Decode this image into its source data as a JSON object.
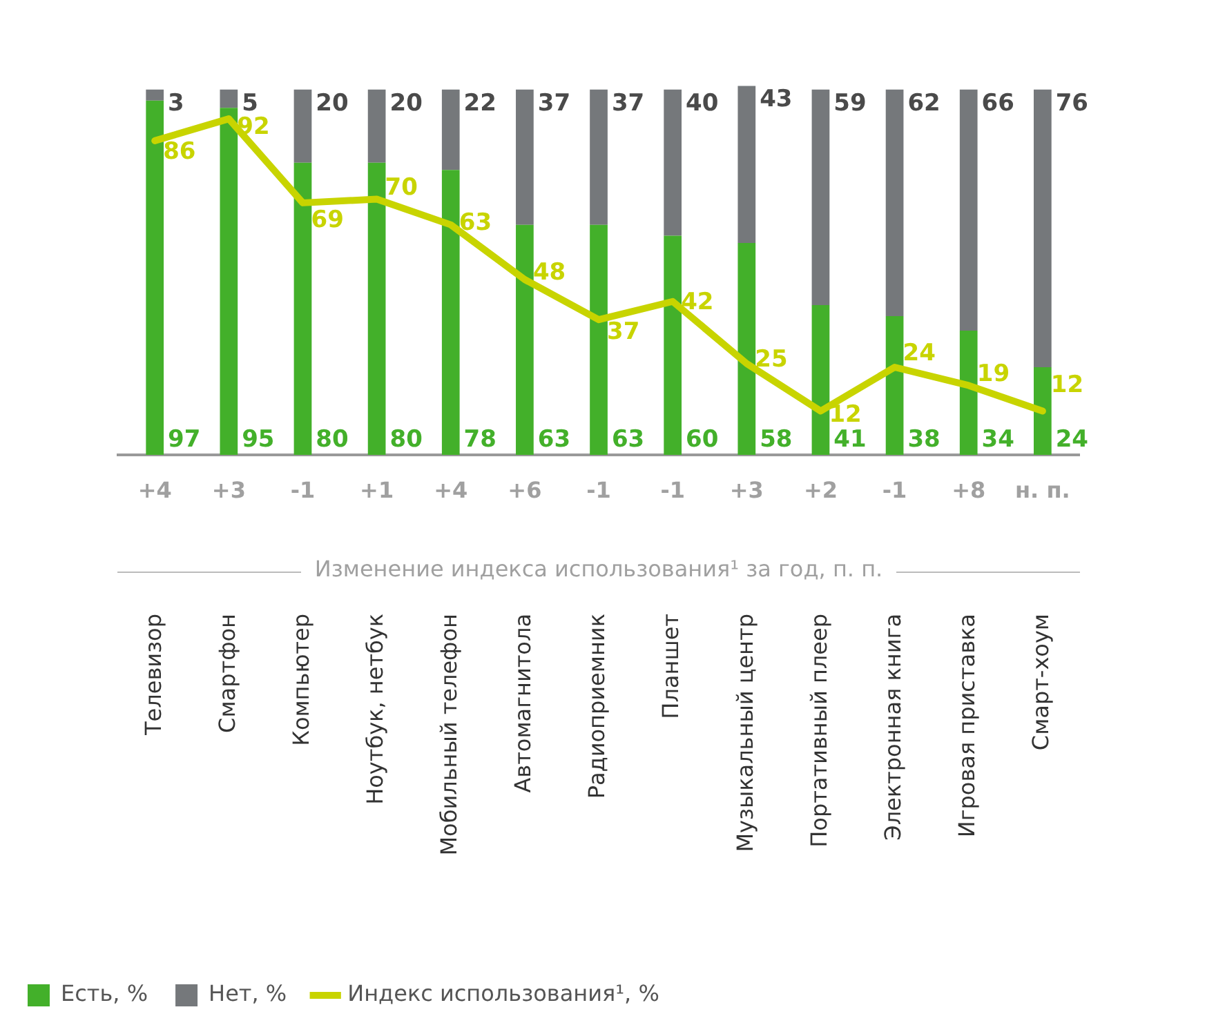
{
  "chart_data": {
    "type": "bar",
    "stacked": true,
    "categories": [
      "Телевизор",
      "Смартфон",
      "Компьютер",
      "Ноутбук, нетбук",
      "Мобильный телефон",
      "Автомагнитола",
      "Радиоприемник",
      "Планшет",
      "Музыкальный центр",
      "Портативный плеер",
      "Электронная книга",
      "Игровая приставка",
      "Смарт-хоум"
    ],
    "series": [
      {
        "name": "Есть, %",
        "color": "#43b02a",
        "values": [
          97,
          95,
          80,
          80,
          78,
          63,
          63,
          60,
          58,
          41,
          38,
          34,
          24
        ]
      },
      {
        "name": "Нет, %",
        "color": "#75787b",
        "values": [
          3,
          5,
          20,
          20,
          22,
          37,
          37,
          40,
          43,
          59,
          62,
          66,
          76
        ]
      },
      {
        "name": "Индекс использования¹, %",
        "type": "line",
        "color": "#c8d400",
        "values": [
          86,
          92,
          69,
          70,
          63,
          48,
          37,
          42,
          25,
          12,
          24,
          19,
          12
        ]
      }
    ],
    "data_labels": true,
    "grid": false,
    "legend": "bottom left",
    "tick_labels": "x",
    "annotations": [
      "+4",
      "+3",
      "-1",
      "+1",
      "+4",
      "+6",
      "-1",
      "-1",
      "+3",
      "+2",
      "-1",
      "+8",
      "н. п.",
      "Изменение индекса использования¹ за год, п. п."
    ]
  }
}
